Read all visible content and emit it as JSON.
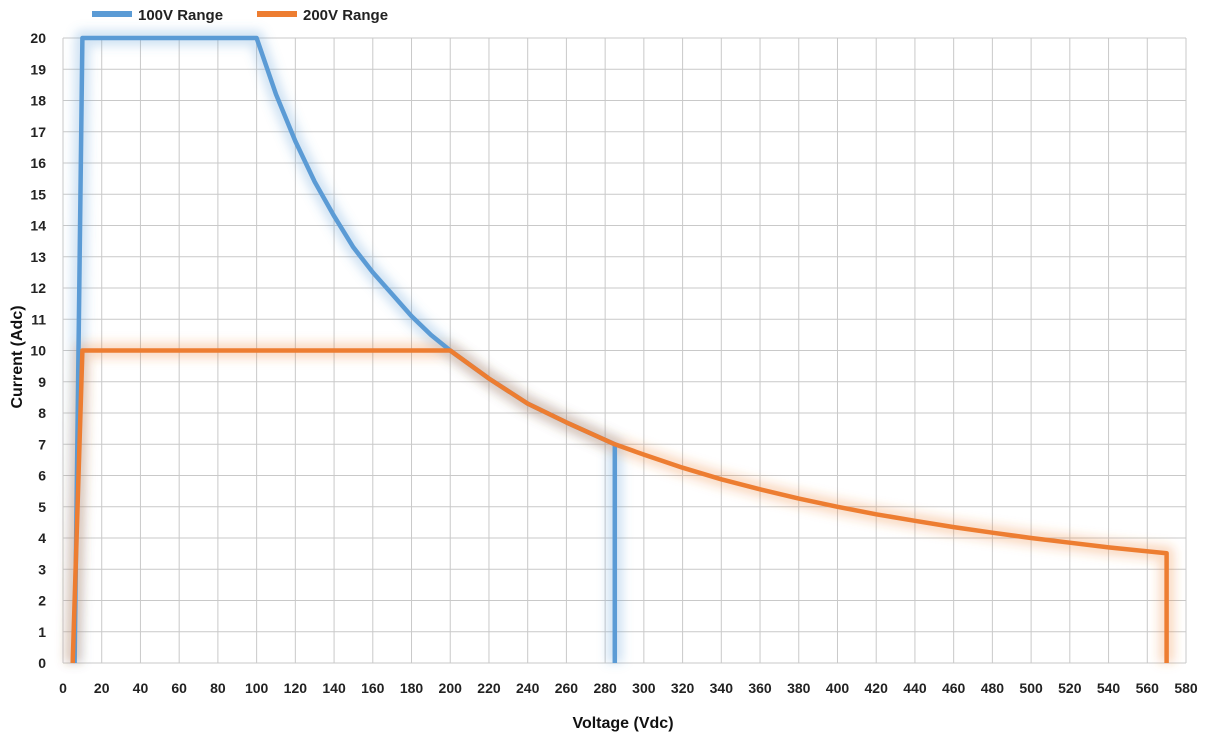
{
  "chart_data": {
    "type": "line",
    "title": "",
    "xlabel": "Voltage (Vdc)",
    "ylabel": "Current (Adc)",
    "xlim": [
      0,
      580
    ],
    "ylim": [
      0,
      20
    ],
    "xticks": [
      0,
      20,
      40,
      60,
      80,
      100,
      120,
      140,
      160,
      180,
      200,
      220,
      240,
      260,
      280,
      300,
      320,
      340,
      360,
      380,
      400,
      420,
      440,
      460,
      480,
      500,
      520,
      540,
      560,
      580
    ],
    "yticks": [
      0,
      1,
      2,
      3,
      4,
      5,
      6,
      7,
      8,
      9,
      10,
      11,
      12,
      13,
      14,
      15,
      16,
      17,
      18,
      19,
      20
    ],
    "grid": true,
    "legend_position": "top-left",
    "series": [
      {
        "name": "100V Range",
        "color": "#5b9bd5",
        "points": [
          [
            6,
            0
          ],
          [
            10,
            20
          ],
          [
            100,
            20
          ],
          [
            110,
            18.2
          ],
          [
            120,
            16.7
          ],
          [
            130,
            15.4
          ],
          [
            140,
            14.3
          ],
          [
            150,
            13.3
          ],
          [
            160,
            12.5
          ],
          [
            170,
            11.8
          ],
          [
            180,
            11.1
          ],
          [
            190,
            10.5
          ],
          [
            200,
            10
          ],
          [
            220,
            9.1
          ],
          [
            240,
            8.3
          ],
          [
            260,
            7.7
          ],
          [
            285,
            7.0
          ],
          [
            285,
            0
          ]
        ]
      },
      {
        "name": "200V Range",
        "color": "#ed7d31",
        "points": [
          [
            5,
            0
          ],
          [
            10,
            10
          ],
          [
            200,
            10
          ],
          [
            220,
            9.1
          ],
          [
            240,
            8.3
          ],
          [
            260,
            7.7
          ],
          [
            285,
            7.0
          ],
          [
            300,
            6.67
          ],
          [
            320,
            6.25
          ],
          [
            340,
            5.88
          ],
          [
            360,
            5.56
          ],
          [
            380,
            5.26
          ],
          [
            400,
            5.0
          ],
          [
            420,
            4.76
          ],
          [
            440,
            4.55
          ],
          [
            460,
            4.35
          ],
          [
            480,
            4.17
          ],
          [
            500,
            4.0
          ],
          [
            520,
            3.85
          ],
          [
            540,
            3.7
          ],
          [
            570,
            3.51
          ],
          [
            570,
            0
          ]
        ]
      }
    ]
  }
}
